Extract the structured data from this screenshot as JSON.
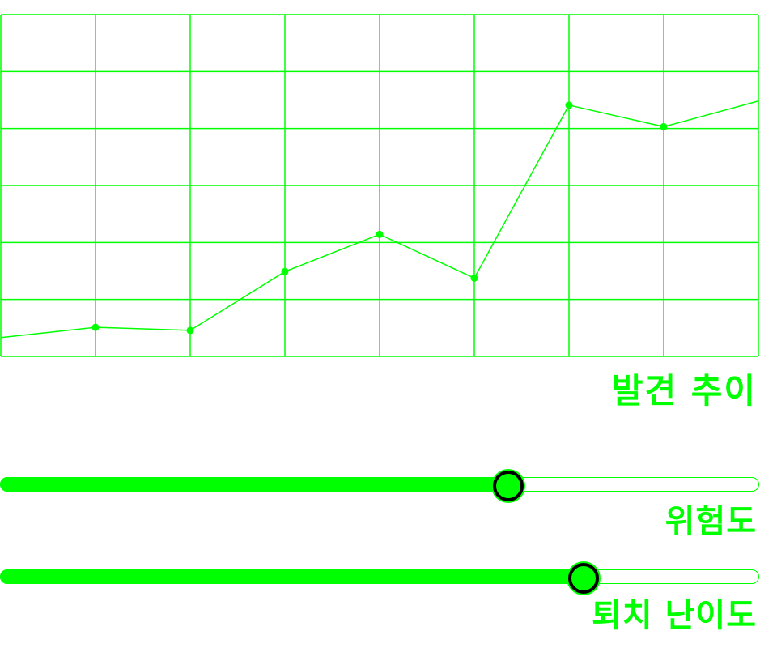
{
  "chart_data": {
    "type": "line",
    "title": "발견 추이",
    "x": [
      0,
      1,
      2,
      3,
      4,
      5,
      6,
      7,
      8
    ],
    "series": [
      {
        "values": [
          5.5,
          8.5,
          7.6,
          24.8,
          35.7,
          22.9,
          73.5,
          67.2,
          74.7
        ]
      }
    ],
    "xlim": [
      0,
      8
    ],
    "ylim": [
      0,
      100
    ],
    "grid": true,
    "grid_x_divisions": 8,
    "grid_y_divisions": 6,
    "line_color": "#00ff00",
    "grid_color": "#00ff00"
  },
  "sliders": [
    {
      "label": "위험도",
      "value": 0.667
    },
    {
      "label": "퇴치 난이도",
      "value": 0.767
    }
  ],
  "colors": {
    "accent": "#00ff00",
    "thumb_border": "#000000",
    "background": "#ffffff"
  }
}
